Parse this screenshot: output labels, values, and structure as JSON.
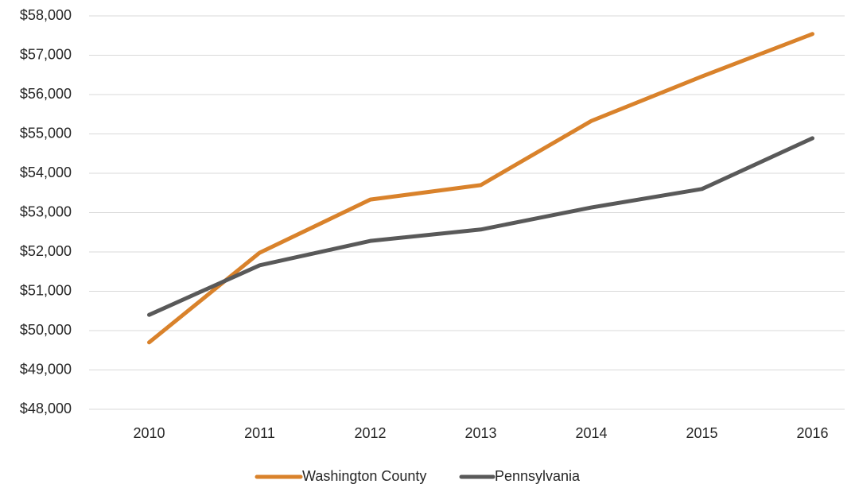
{
  "chart_data": {
    "type": "line",
    "categories": [
      "2010",
      "2011",
      "2012",
      "2013",
      "2014",
      "2015",
      "2016"
    ],
    "series": [
      {
        "name": "Washington County",
        "color": "#d9822b",
        "values": [
          49700,
          51980,
          53330,
          53700,
          55330,
          56460,
          57540
        ]
      },
      {
        "name": "Pennsylvania",
        "color": "#595959",
        "values": [
          50400,
          51660,
          52280,
          52570,
          53130,
          53600,
          54890
        ]
      }
    ],
    "ylim": [
      48000,
      58000
    ],
    "yticks": [
      {
        "value": 48000,
        "label": "$48,000"
      },
      {
        "value": 49000,
        "label": "$49,000"
      },
      {
        "value": 50000,
        "label": "$50,000"
      },
      {
        "value": 51000,
        "label": "$51,000"
      },
      {
        "value": 52000,
        "label": "$52,000"
      },
      {
        "value": 53000,
        "label": "$53,000"
      },
      {
        "value": 54000,
        "label": "$54,000"
      },
      {
        "value": 55000,
        "label": "$55,000"
      },
      {
        "value": 56000,
        "label": "$56,000"
      },
      {
        "value": 57000,
        "label": "$57,000"
      },
      {
        "value": 58000,
        "label": "$58,000"
      }
    ],
    "grid": true,
    "legend": "bottom"
  }
}
